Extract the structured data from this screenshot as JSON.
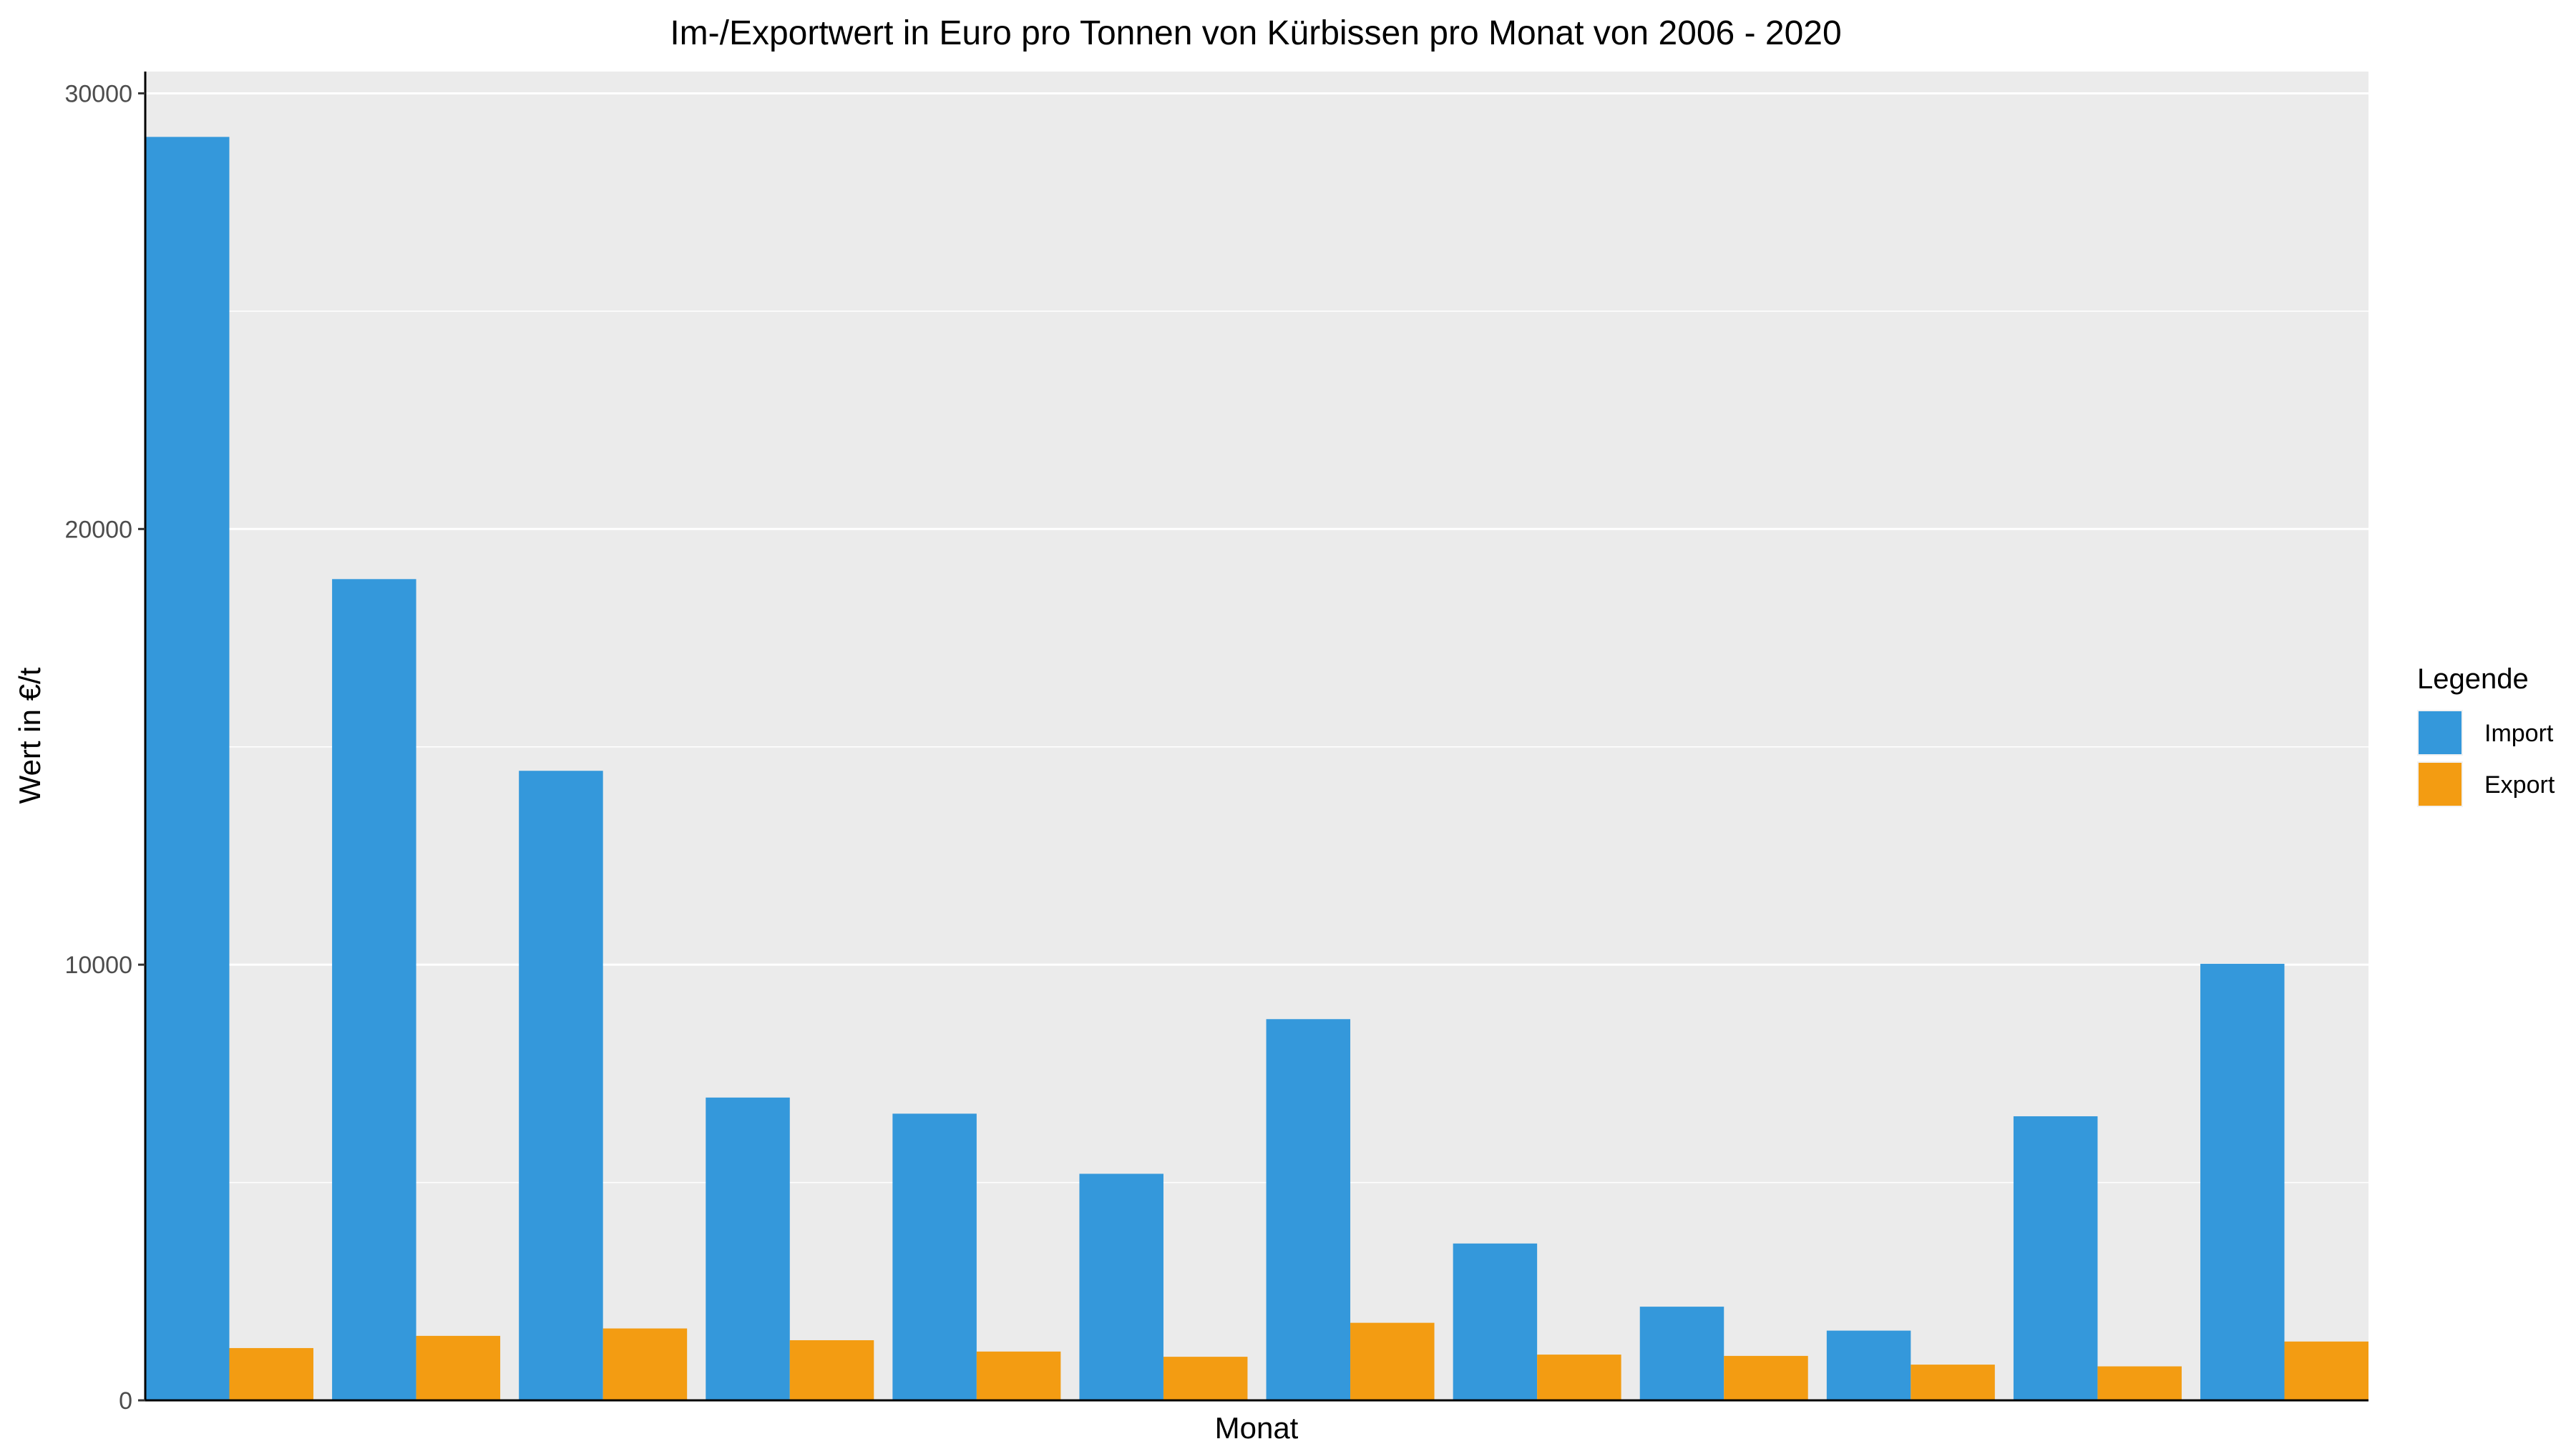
{
  "chart_data": {
    "type": "bar",
    "title": "Im-/Exportwert in Euro pro Tonnen von Kürbissen pro Monat von 2006 - 2020",
    "xlabel": "Monat",
    "ylabel": "Wert in €/t",
    "ylim": [
      0,
      30500
    ],
    "yticks": [
      0,
      10000,
      20000,
      30000
    ],
    "grid": true,
    "legend": {
      "title": "Legende",
      "position": "right"
    },
    "categories": [
      "",
      "",
      "",
      "",
      "",
      "",
      "",
      "",
      "",
      "",
      "",
      ""
    ],
    "series": [
      {
        "name": "Import",
        "color": "#3498DB",
        "values": [
          29000,
          18850,
          14450,
          6950,
          6580,
          5200,
          8750,
          3600,
          2150,
          1600,
          6520,
          10020
        ]
      },
      {
        "name": "Export",
        "color": "#F39C12",
        "values": [
          1200,
          1480,
          1650,
          1380,
          1120,
          1000,
          1780,
          1050,
          1020,
          820,
          780,
          1350
        ]
      }
    ]
  }
}
